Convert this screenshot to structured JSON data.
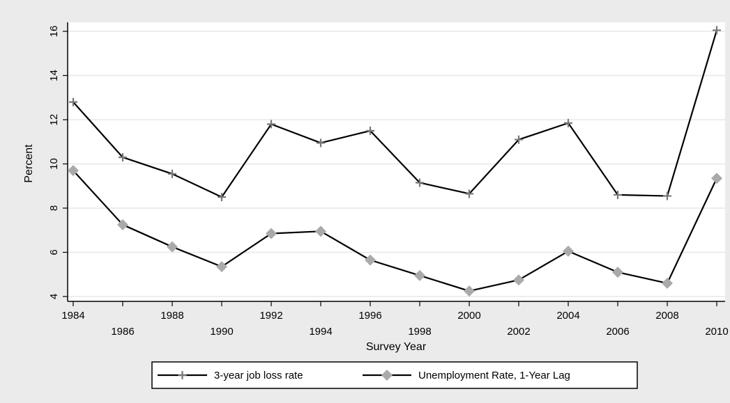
{
  "chart_data": {
    "type": "line",
    "title": "",
    "xlabel": "Survey Year",
    "ylabel": "Percent",
    "x": [
      1984,
      1986,
      1988,
      1990,
      1992,
      1994,
      1996,
      1998,
      2000,
      2002,
      2004,
      2006,
      2008,
      2010
    ],
    "x_tick_labels": [
      "1984",
      "1986",
      "1988",
      "1990",
      "1992",
      "1994",
      "1996",
      "1998",
      "2000",
      "2002",
      "2004",
      "2006",
      "2008",
      "2010"
    ],
    "xlim": [
      1984,
      2010
    ],
    "ylim": [
      4,
      16
    ],
    "y_ticks": [
      4,
      6,
      8,
      10,
      12,
      14,
      16
    ],
    "grid": true,
    "legend_position": "bottom",
    "series": [
      {
        "name": "3-year job loss rate",
        "marker": "plus",
        "color": "#000000",
        "marker_color": "#777777",
        "values": [
          12.8,
          10.3,
          9.55,
          8.5,
          11.8,
          10.95,
          11.5,
          9.15,
          8.65,
          11.1,
          11.85,
          8.6,
          8.55,
          16.05
        ]
      },
      {
        "name": "Unemployment Rate, 1-Year Lag",
        "marker": "diamond",
        "color": "#000000",
        "marker_color": "#aaaaaa",
        "values": [
          9.7,
          7.25,
          6.25,
          5.35,
          6.85,
          6.95,
          5.65,
          4.95,
          4.25,
          4.75,
          6.05,
          5.1,
          4.6,
          9.35
        ]
      }
    ]
  }
}
